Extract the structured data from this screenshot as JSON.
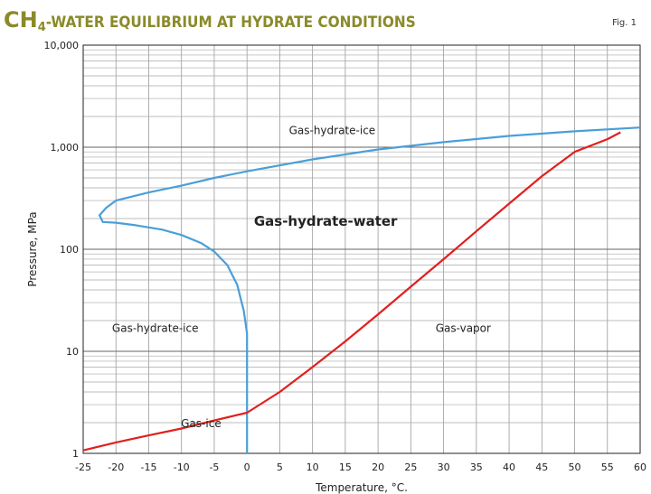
{
  "title": {
    "ch": "CH",
    "sub": "4",
    "rest": "-WATER EQUILIBRIUM AT HYDRATE CONDITIONS"
  },
  "fig_label": "Fig. 1",
  "chart_data": {
    "type": "line",
    "xlabel": "Temperature, °C.",
    "ylabel": "Pressure, MPa",
    "xlim": [
      -25,
      60
    ],
    "ylim": [
      1,
      10000
    ],
    "yscale": "log",
    "grid": true,
    "xticks": [
      -25,
      -20,
      -15,
      -10,
      -5,
      0,
      5,
      10,
      15,
      20,
      25,
      30,
      35,
      40,
      45,
      50,
      55,
      60
    ],
    "yticks": [
      {
        "value": 1,
        "label": "1"
      },
      {
        "value": 10,
        "label": "10"
      },
      {
        "value": 100,
        "label": "100"
      },
      {
        "value": 1000,
        "label": "1,000"
      },
      {
        "value": 10000,
        "label": "10,000"
      }
    ],
    "series": [
      {
        "color": "#4a9fd8",
        "points": [
          [
            -20,
            300
          ],
          [
            -15,
            360
          ],
          [
            -10,
            420
          ],
          [
            -5,
            500
          ],
          [
            0,
            580
          ],
          [
            10,
            760
          ],
          [
            20,
            950
          ],
          [
            30,
            1120
          ],
          [
            40,
            1290
          ],
          [
            50,
            1430
          ],
          [
            60,
            1560
          ]
        ]
      },
      {
        "color": "#4a9fd8",
        "points": [
          [
            -20,
            300
          ],
          [
            -21.5,
            255
          ],
          [
            -22.5,
            215
          ],
          [
            -22,
            185
          ],
          [
            -20,
            182
          ],
          [
            -17,
            172
          ],
          [
            -13,
            156
          ],
          [
            -10,
            138
          ],
          [
            -7,
            115
          ],
          [
            -5,
            95
          ],
          [
            -3,
            70
          ],
          [
            -1.5,
            45
          ],
          [
            -0.5,
            25
          ],
          [
            0,
            15
          ],
          [
            0,
            1
          ]
        ]
      },
      {
        "color": "#e0201e",
        "points": [
          [
            -25,
            1.07
          ],
          [
            -20,
            1.28
          ],
          [
            -15,
            1.5
          ],
          [
            -10,
            1.75
          ],
          [
            -5,
            2.1
          ],
          [
            0,
            2.5
          ],
          [
            5,
            4
          ],
          [
            10,
            7
          ],
          [
            15,
            12.5
          ],
          [
            20,
            23
          ],
          [
            25,
            43
          ],
          [
            30,
            80
          ],
          [
            35,
            150
          ],
          [
            40,
            280
          ],
          [
            45,
            520
          ],
          [
            50,
            900
          ],
          [
            55,
            1200
          ],
          [
            57,
            1400
          ]
        ]
      }
    ],
    "annotations": [
      {
        "text": "Gas-hydrate-ice",
        "x": 13,
        "y": 1350
      },
      {
        "text": "Gas-hydrate-water",
        "x": 12,
        "y": 170
      },
      {
        "text": "Gas-hydrate-ice",
        "x": -14,
        "y": 15.5
      },
      {
        "text": "Gas-vapor",
        "x": 33,
        "y": 15.5
      },
      {
        "text": "Gas-ice",
        "x": -7,
        "y": 1.8
      }
    ]
  }
}
